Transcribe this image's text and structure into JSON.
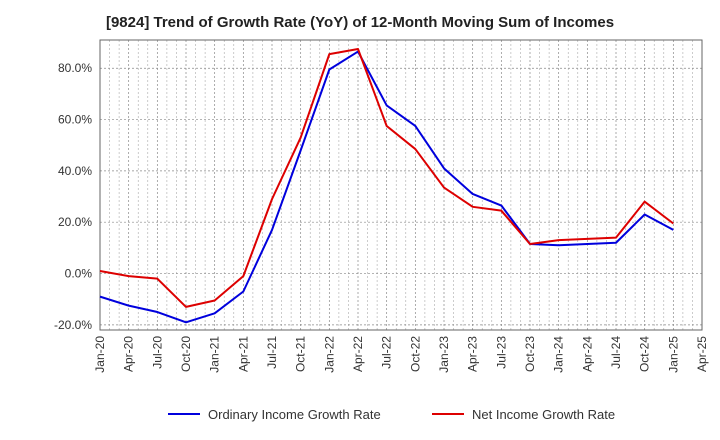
{
  "chart_data": {
    "type": "line",
    "title": "[9824]  Trend of Growth Rate (YoY) of 12-Month Moving Sum of Incomes",
    "xlabel": "",
    "ylabel": "",
    "x_tick_labels": [
      "Jan-20",
      "Apr-20",
      "Jul-20",
      "Oct-20",
      "Jan-21",
      "Apr-21",
      "Jul-21",
      "Oct-21",
      "Jan-22",
      "Apr-22",
      "Jul-22",
      "Oct-22",
      "Jan-23",
      "Apr-23",
      "Jul-23",
      "Oct-23",
      "Jan-24",
      "Apr-24",
      "Jul-24",
      "Oct-24",
      "Jan-25",
      "Apr-25"
    ],
    "y_ticks": [
      -20,
      0,
      20,
      40,
      60,
      80
    ],
    "y_tick_labels": [
      "-20.0%",
      "0.0%",
      "20.0%",
      "40.0%",
      "60.0%",
      "80.0%"
    ],
    "ylim": [
      -22,
      91
    ],
    "grid": true,
    "legend_position": "bottom",
    "series": [
      {
        "name": "Ordinary Income Growth Rate",
        "color": "#0000dd",
        "x": [
          "Jan-20",
          "Apr-20",
          "Jul-20",
          "Oct-20",
          "Jan-21",
          "Apr-21",
          "Jul-21",
          "Oct-21",
          "Jan-22",
          "Apr-22",
          "Jul-22",
          "Oct-22",
          "Jan-23",
          "Apr-23",
          "Jul-23",
          "Oct-23",
          "Jan-24",
          "Apr-24",
          "Jul-24",
          "Oct-24",
          "Jan-25"
        ],
        "values": [
          -9,
          -12.5,
          -15,
          -19,
          -15.5,
          -7,
          17,
          48,
          79.5,
          86.5,
          65.5,
          57.5,
          41,
          31,
          26.5,
          11.5,
          11,
          11.5,
          12,
          23,
          17
        ]
      },
      {
        "name": "Net Income Growth Rate",
        "color": "#dd0000",
        "x": [
          "Jan-20",
          "Apr-20",
          "Jul-20",
          "Oct-20",
          "Jan-21",
          "Apr-21",
          "Jul-21",
          "Oct-21",
          "Jan-22",
          "Apr-22",
          "Jul-22",
          "Oct-22",
          "Jan-23",
          "Apr-23",
          "Jul-23",
          "Oct-23",
          "Jan-24",
          "Apr-24",
          "Jul-24",
          "Oct-24",
          "Jan-25"
        ],
        "values": [
          1,
          -1,
          -2,
          -13,
          -10.5,
          -1,
          29,
          53,
          85.5,
          87.5,
          57.5,
          48.5,
          33.5,
          26,
          24.5,
          11.5,
          13,
          13.5,
          14,
          28,
          19.5
        ]
      }
    ]
  }
}
